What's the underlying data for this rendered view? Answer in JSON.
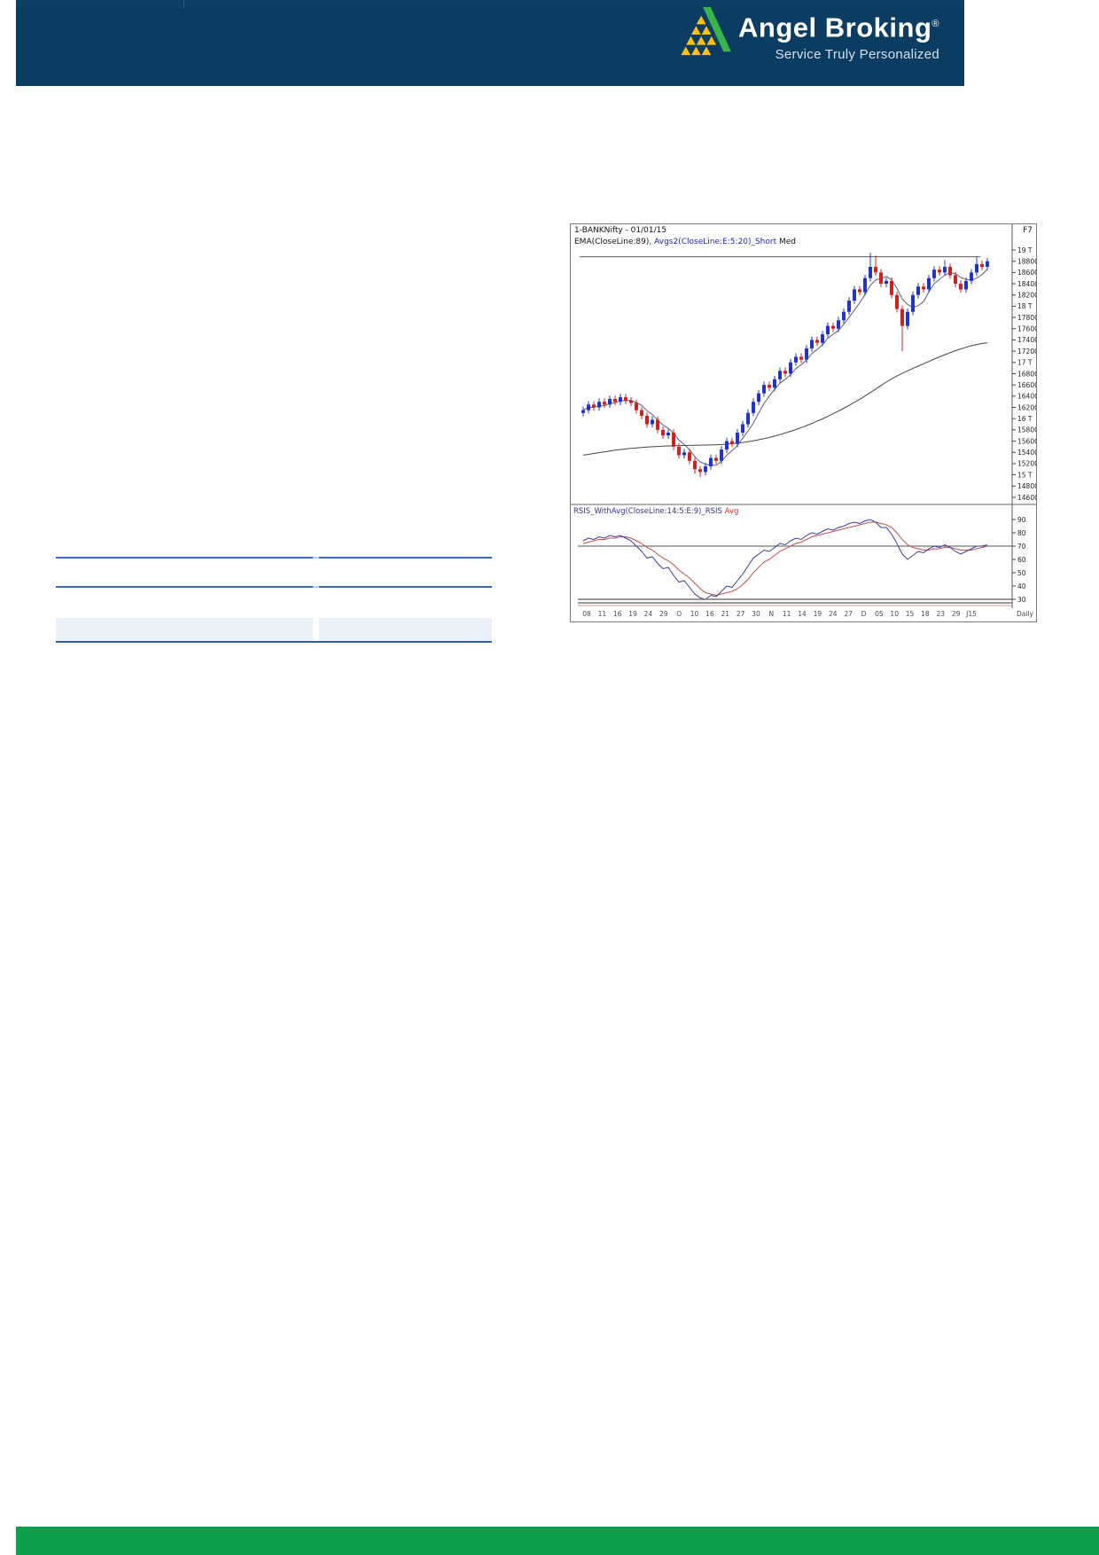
{
  "header": {
    "brand": "Angel Broking",
    "reg": "®",
    "tagline": "Service Truly Personalized",
    "colors": {
      "bar": "#0b3c61",
      "logo_green": "#39b54a",
      "logo_yellow": "#ffc20e"
    }
  },
  "footer": {
    "color": "#0fa04c"
  },
  "left_table": {
    "line_color": "#3a6cb4",
    "band_color": "#eaf1f8"
  },
  "chart_data": {
    "type": "candlestick",
    "title": "1-BANKNifty - 01/01/15",
    "legend_seg1": "EMA(CloseLine:89), ",
    "legend_seg2": "Avgs2(CloseLine:E:5:20)_Short",
    "legend_seg3": " Med",
    "function_key": "F7",
    "panel2_label": "RSIS_WithAvg(CloseLine:14:5:E:9)_RSIS",
    "panel2_label_avg": " Avg",
    "timeframe_label": "Daily",
    "x_ticks": [
      "08",
      "11",
      "16",
      "19",
      "24",
      "29",
      "O",
      "10",
      "16",
      "21",
      "27",
      "30",
      "N",
      "11",
      "14",
      "19",
      "24",
      "27",
      "D",
      "05",
      "10",
      "15",
      "18",
      "23",
      "29",
      "J15"
    ],
    "price_axis": {
      "ticks": [
        {
          "v": 19000,
          "l": "19 T"
        },
        {
          "v": 18800,
          "l": "18800"
        },
        {
          "v": 18600,
          "l": "18600"
        },
        {
          "v": 18400,
          "l": "18400"
        },
        {
          "v": 18200,
          "l": "18200"
        },
        {
          "v": 18000,
          "l": "18 T"
        },
        {
          "v": 17800,
          "l": "17800"
        },
        {
          "v": 17600,
          "l": "17600"
        },
        {
          "v": 17400,
          "l": "17400"
        },
        {
          "v": 17200,
          "l": "17200"
        },
        {
          "v": 17000,
          "l": "17 T"
        },
        {
          "v": 16800,
          "l": "16800"
        },
        {
          "v": 16600,
          "l": "16600"
        },
        {
          "v": 16400,
          "l": "16400"
        },
        {
          "v": 16200,
          "l": "16200"
        },
        {
          "v": 16000,
          "l": "16 T"
        },
        {
          "v": 15800,
          "l": "15800"
        },
        {
          "v": 15600,
          "l": "15600"
        },
        {
          "v": 15400,
          "l": "15400"
        },
        {
          "v": 15200,
          "l": "15200"
        },
        {
          "v": 15000,
          "l": "15 T"
        },
        {
          "v": 14800,
          "l": "14800"
        },
        {
          "v": 14600,
          "l": "14600"
        }
      ]
    },
    "resistance_level": 18880,
    "candles": [
      [
        16100,
        16210,
        16040,
        16150
      ],
      [
        16150,
        16310,
        16090,
        16250
      ],
      [
        16250,
        16310,
        16140,
        16200
      ],
      [
        16200,
        16360,
        16140,
        16300
      ],
      [
        16300,
        16360,
        16190,
        16250
      ],
      [
        16250,
        16410,
        16190,
        16350
      ],
      [
        16350,
        16410,
        16240,
        16300
      ],
      [
        16300,
        16440,
        16240,
        16380
      ],
      [
        16380,
        16440,
        16260,
        16320
      ],
      [
        16320,
        16380,
        16220,
        16280
      ],
      [
        16280,
        16340,
        16090,
        16150
      ],
      [
        16150,
        16210,
        15990,
        16050
      ],
      [
        16050,
        16110,
        15840,
        15900
      ],
      [
        15900,
        16040,
        15840,
        15980
      ],
      [
        15980,
        16040,
        15740,
        15800
      ],
      [
        15800,
        15860,
        15640,
        15700
      ],
      [
        15700,
        15810,
        15640,
        15750
      ],
      [
        15750,
        15810,
        15440,
        15500
      ],
      [
        15500,
        15560,
        15290,
        15350
      ],
      [
        15350,
        15460,
        15290,
        15400
      ],
      [
        15400,
        15460,
        15190,
        15250
      ],
      [
        15250,
        15310,
        15020,
        15100
      ],
      [
        15100,
        15160,
        14960,
        15050
      ],
      [
        15050,
        15210,
        14990,
        15150
      ],
      [
        15150,
        15360,
        15090,
        15300
      ],
      [
        15300,
        15360,
        15190,
        15250
      ],
      [
        15250,
        15510,
        15190,
        15450
      ],
      [
        15450,
        15660,
        15390,
        15600
      ],
      [
        15600,
        15660,
        15490,
        15550
      ],
      [
        15550,
        15810,
        15490,
        15750
      ],
      [
        15750,
        15960,
        15690,
        15900
      ],
      [
        15900,
        16160,
        15840,
        16100
      ],
      [
        16100,
        16360,
        16040,
        16300
      ],
      [
        16300,
        16510,
        16240,
        16450
      ],
      [
        16450,
        16660,
        16390,
        16600
      ],
      [
        16600,
        16660,
        16490,
        16550
      ],
      [
        16550,
        16760,
        16490,
        16700
      ],
      [
        16700,
        16910,
        16640,
        16850
      ],
      [
        16850,
        16910,
        16740,
        16800
      ],
      [
        16800,
        17060,
        16740,
        17000
      ],
      [
        17000,
        17160,
        16940,
        17100
      ],
      [
        17100,
        17160,
        16990,
        17050
      ],
      [
        17050,
        17310,
        16990,
        17250
      ],
      [
        17250,
        17460,
        17190,
        17400
      ],
      [
        17400,
        17460,
        17290,
        17350
      ],
      [
        17350,
        17560,
        17290,
        17500
      ],
      [
        17500,
        17710,
        17440,
        17650
      ],
      [
        17650,
        17710,
        17540,
        17600
      ],
      [
        17600,
        17810,
        17540,
        17750
      ],
      [
        17750,
        17960,
        17690,
        17900
      ],
      [
        17900,
        18160,
        17840,
        18100
      ],
      [
        18100,
        18360,
        18040,
        18300
      ],
      [
        18300,
        18360,
        18190,
        18250
      ],
      [
        18250,
        18560,
        18190,
        18500
      ],
      [
        18500,
        18950,
        18440,
        18700
      ],
      [
        18700,
        18900,
        18540,
        18600
      ],
      [
        18600,
        18660,
        18340,
        18400
      ],
      [
        18400,
        18510,
        18340,
        18450
      ],
      [
        18450,
        18510,
        18140,
        18200
      ],
      [
        18200,
        18260,
        17890,
        17950
      ],
      [
        17950,
        18010,
        17200,
        17650
      ],
      [
        17650,
        17960,
        17590,
        17900
      ],
      [
        17900,
        18260,
        17840,
        18200
      ],
      [
        18200,
        18410,
        18140,
        18350
      ],
      [
        18350,
        18410,
        18240,
        18300
      ],
      [
        18300,
        18560,
        18240,
        18500
      ],
      [
        18500,
        18710,
        18440,
        18650
      ],
      [
        18650,
        18710,
        18540,
        18600
      ],
      [
        18600,
        18820,
        18540,
        18700
      ],
      [
        18700,
        18760,
        18490,
        18550
      ],
      [
        18550,
        18610,
        18340,
        18400
      ],
      [
        18400,
        18460,
        18240,
        18300
      ],
      [
        18300,
        18510,
        18240,
        18450
      ],
      [
        18450,
        18660,
        18390,
        18600
      ],
      [
        18600,
        18870,
        18540,
        18750
      ],
      [
        18750,
        18810,
        18640,
        18700
      ],
      [
        18700,
        18860,
        18640,
        18800
      ]
    ],
    "ema89": [
      15350,
      15365,
      15380,
      15395,
      15410,
      15425,
      15440,
      15450,
      15460,
      15470,
      15478,
      15486,
      15494,
      15500,
      15505,
      15510,
      15514,
      15517,
      15520,
      15522,
      15524,
      15526,
      15528,
      15530,
      15532,
      15535,
      15540,
      15546,
      15554,
      15564,
      15576,
      15590,
      15606,
      15624,
      15644,
      15666,
      15690,
      15716,
      15744,
      15774,
      15806,
      15840,
      15876,
      15914,
      15954,
      15996,
      16040,
      16086,
      16134,
      16184,
      16236,
      16290,
      16346,
      16404,
      16464,
      16526,
      16590,
      16650,
      16706,
      16758,
      16806,
      16850,
      16892,
      16934,
      16976,
      17018,
      17060,
      17100,
      17138,
      17174,
      17208,
      17240,
      17270,
      17296,
      17318,
      17336,
      17350
    ],
    "rsi": {
      "ticks": [
        90,
        80,
        70,
        60,
        50,
        40,
        30
      ],
      "overbought": 70,
      "oversold": 30,
      "line": [
        74,
        76,
        75,
        77,
        76,
        78,
        77,
        78,
        76,
        74,
        70,
        66,
        61,
        62,
        57,
        53,
        54,
        48,
        43,
        44,
        39,
        34,
        31,
        30,
        33,
        32,
        36,
        40,
        39,
        44,
        49,
        55,
        61,
        64,
        67,
        66,
        69,
        72,
        71,
        74,
        76,
        75,
        78,
        80,
        79,
        81,
        83,
        82,
        84,
        85,
        87,
        88,
        87,
        89,
        90,
        88,
        84,
        84,
        79,
        72,
        64,
        60,
        63,
        66,
        65,
        68,
        70,
        69,
        71,
        69,
        66,
        64,
        66,
        68,
        70,
        70,
        71
      ],
      "avg": [
        72,
        73,
        74,
        75,
        75,
        76,
        76,
        77,
        77,
        76,
        74,
        72,
        69,
        67,
        64,
        61,
        59,
        56,
        52,
        49,
        46,
        42,
        38,
        35,
        34,
        33,
        34,
        35,
        36,
        38,
        41,
        45,
        50,
        54,
        58,
        60,
        63,
        66,
        68,
        70,
        72,
        73,
        75,
        77,
        78,
        79,
        80,
        81,
        82,
        83,
        84,
        85,
        86,
        87,
        88,
        88,
        87,
        86,
        84,
        80,
        75,
        71,
        69,
        68,
        67,
        67,
        68,
        68,
        69,
        69,
        68,
        67,
        67,
        67,
        68,
        69,
        70
      ]
    },
    "colors": {
      "up": "#2233cc",
      "down": "#cc2222",
      "ema": "#444444",
      "ma": "#5c5c78",
      "rsi_line": "#3c3c99",
      "rsi_avg": "#c05050",
      "axis_text": "#222222",
      "frame": "#7a7a7a",
      "date_text": "#4a4a4a"
    }
  }
}
